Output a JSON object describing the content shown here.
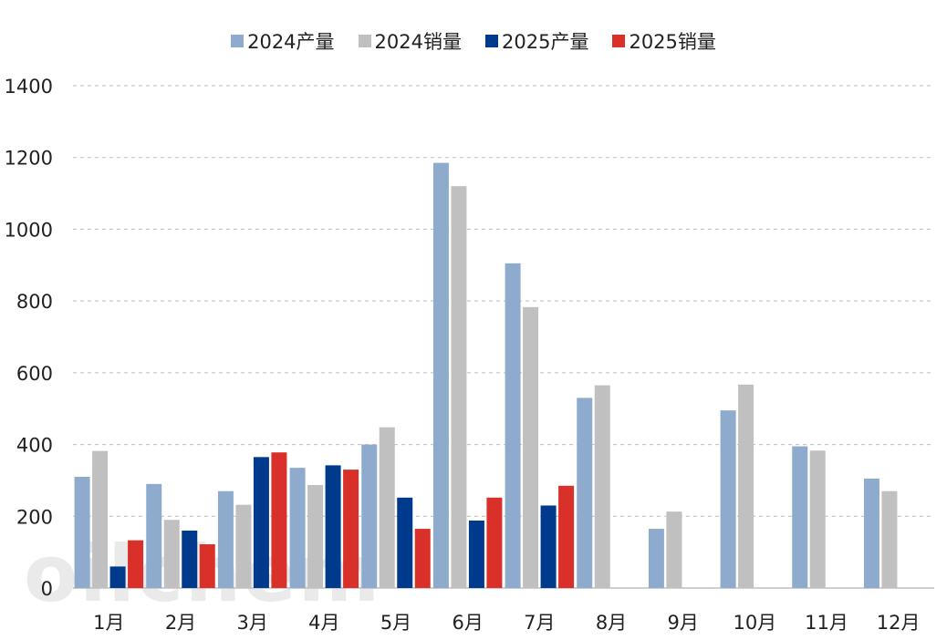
{
  "legend": [
    {
      "label": "2024产量",
      "color": "#8eaacc"
    },
    {
      "label": "2024销量",
      "color": "#c0c0c0"
    },
    {
      "label": "2025产量",
      "color": "#003a8c"
    },
    {
      "label": "2025销量",
      "color": "#d9302a"
    }
  ],
  "watermark": "oilchem",
  "chart_data": {
    "type": "bar",
    "title": "",
    "xlabel": "",
    "ylabel": "",
    "ylim": [
      0,
      1400
    ],
    "yticks": [
      0,
      200,
      400,
      600,
      800,
      1000,
      1200,
      1400
    ],
    "grid": true,
    "legend_position": "top",
    "categories": [
      "1月",
      "2月",
      "3月",
      "4月",
      "5月",
      "6月",
      "7月",
      "8月",
      "9月",
      "10月",
      "11月",
      "12月"
    ],
    "series": [
      {
        "name": "2024产量",
        "color": "#8eaacc",
        "values": [
          310,
          290,
          270,
          335,
          400,
          1185,
          905,
          530,
          165,
          495,
          395,
          305
        ]
      },
      {
        "name": "2024销量",
        "color": "#c0c0c0",
        "values": [
          382,
          190,
          232,
          287,
          448,
          1120,
          783,
          565,
          213,
          567,
          383,
          270
        ]
      },
      {
        "name": "2025产量",
        "color": "#003a8c",
        "values": [
          60,
          160,
          365,
          342,
          252,
          188,
          230,
          null,
          null,
          null,
          null,
          null
        ]
      },
      {
        "name": "2025销量",
        "color": "#d9302a",
        "values": [
          133,
          122,
          378,
          330,
          165,
          252,
          285,
          null,
          null,
          null,
          null,
          null
        ]
      }
    ]
  }
}
